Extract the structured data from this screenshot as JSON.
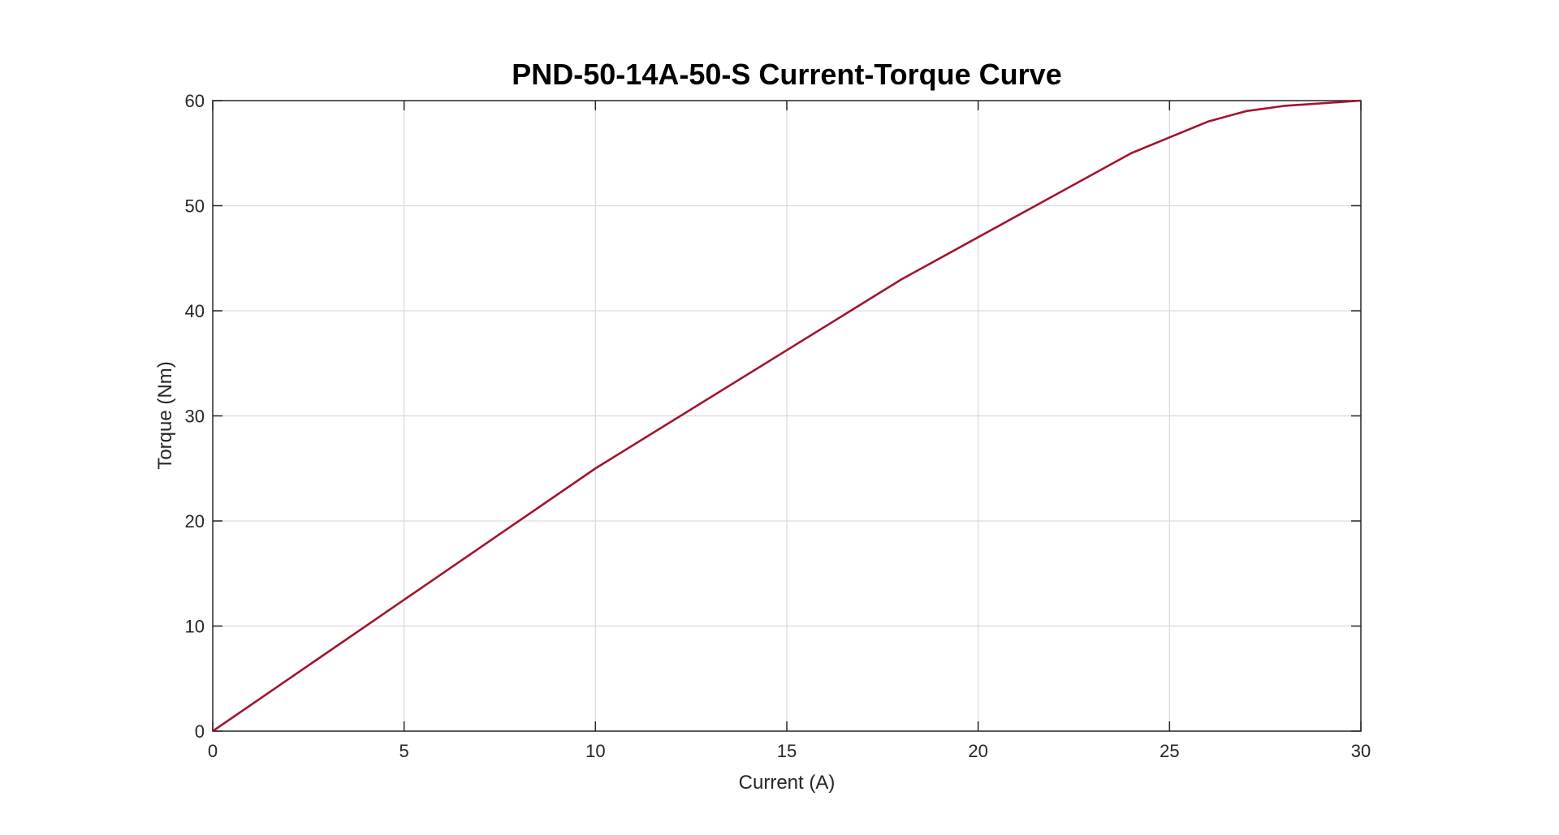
{
  "chart_data": {
    "type": "line",
    "title": "PND-50-14A-50-S Current-Torque Curve",
    "xlabel": "Current (A)",
    "ylabel": "Torque (Nm)",
    "xlim": [
      0,
      30
    ],
    "ylim": [
      0,
      60
    ],
    "xticks": [
      0,
      5,
      10,
      15,
      20,
      25,
      30
    ],
    "yticks": [
      0,
      10,
      20,
      30,
      40,
      50,
      60
    ],
    "xtick_labels": [
      "0",
      "5",
      "10",
      "15",
      "20",
      "25",
      "30"
    ],
    "ytick_labels": [
      "0",
      "10",
      "20",
      "30",
      "40",
      "50",
      "60"
    ],
    "grid": true,
    "series": [
      {
        "color": "#a2142f",
        "x": [
          0,
          10,
          18,
          24,
          25,
          26,
          27,
          28,
          30
        ],
        "y": [
          0,
          25,
          43,
          55,
          56.5,
          58,
          59,
          59.5,
          60
        ]
      }
    ]
  }
}
